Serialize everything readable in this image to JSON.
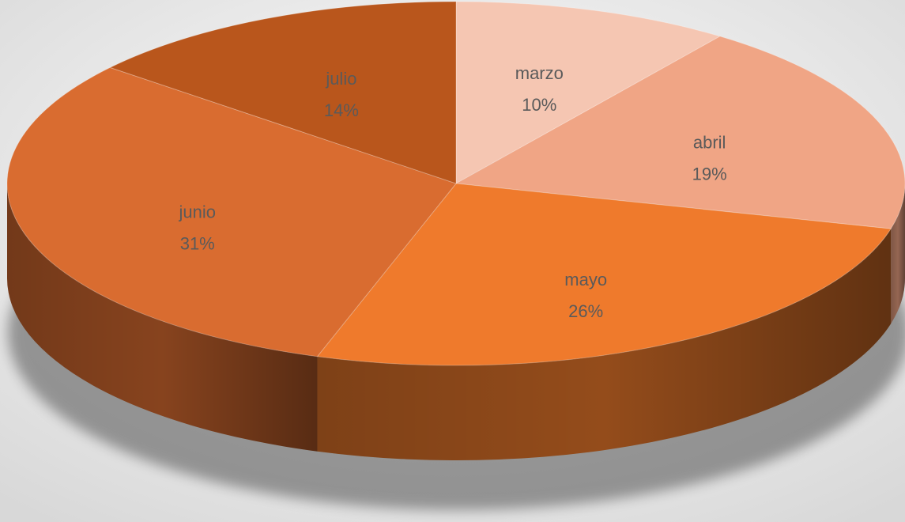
{
  "chart_data": {
    "type": "pie",
    "categories": [
      "marzo",
      "abril",
      "mayo",
      "junio",
      "julio"
    ],
    "values": [
      10,
      19,
      26,
      31,
      14
    ],
    "value_labels": [
      "10%",
      "19%",
      "26%",
      "31%",
      "14%"
    ],
    "colors": [
      "#f5c6b2",
      "#f0a585",
      "#ef7a2c",
      "#d96c30",
      "#b9561c"
    ]
  }
}
